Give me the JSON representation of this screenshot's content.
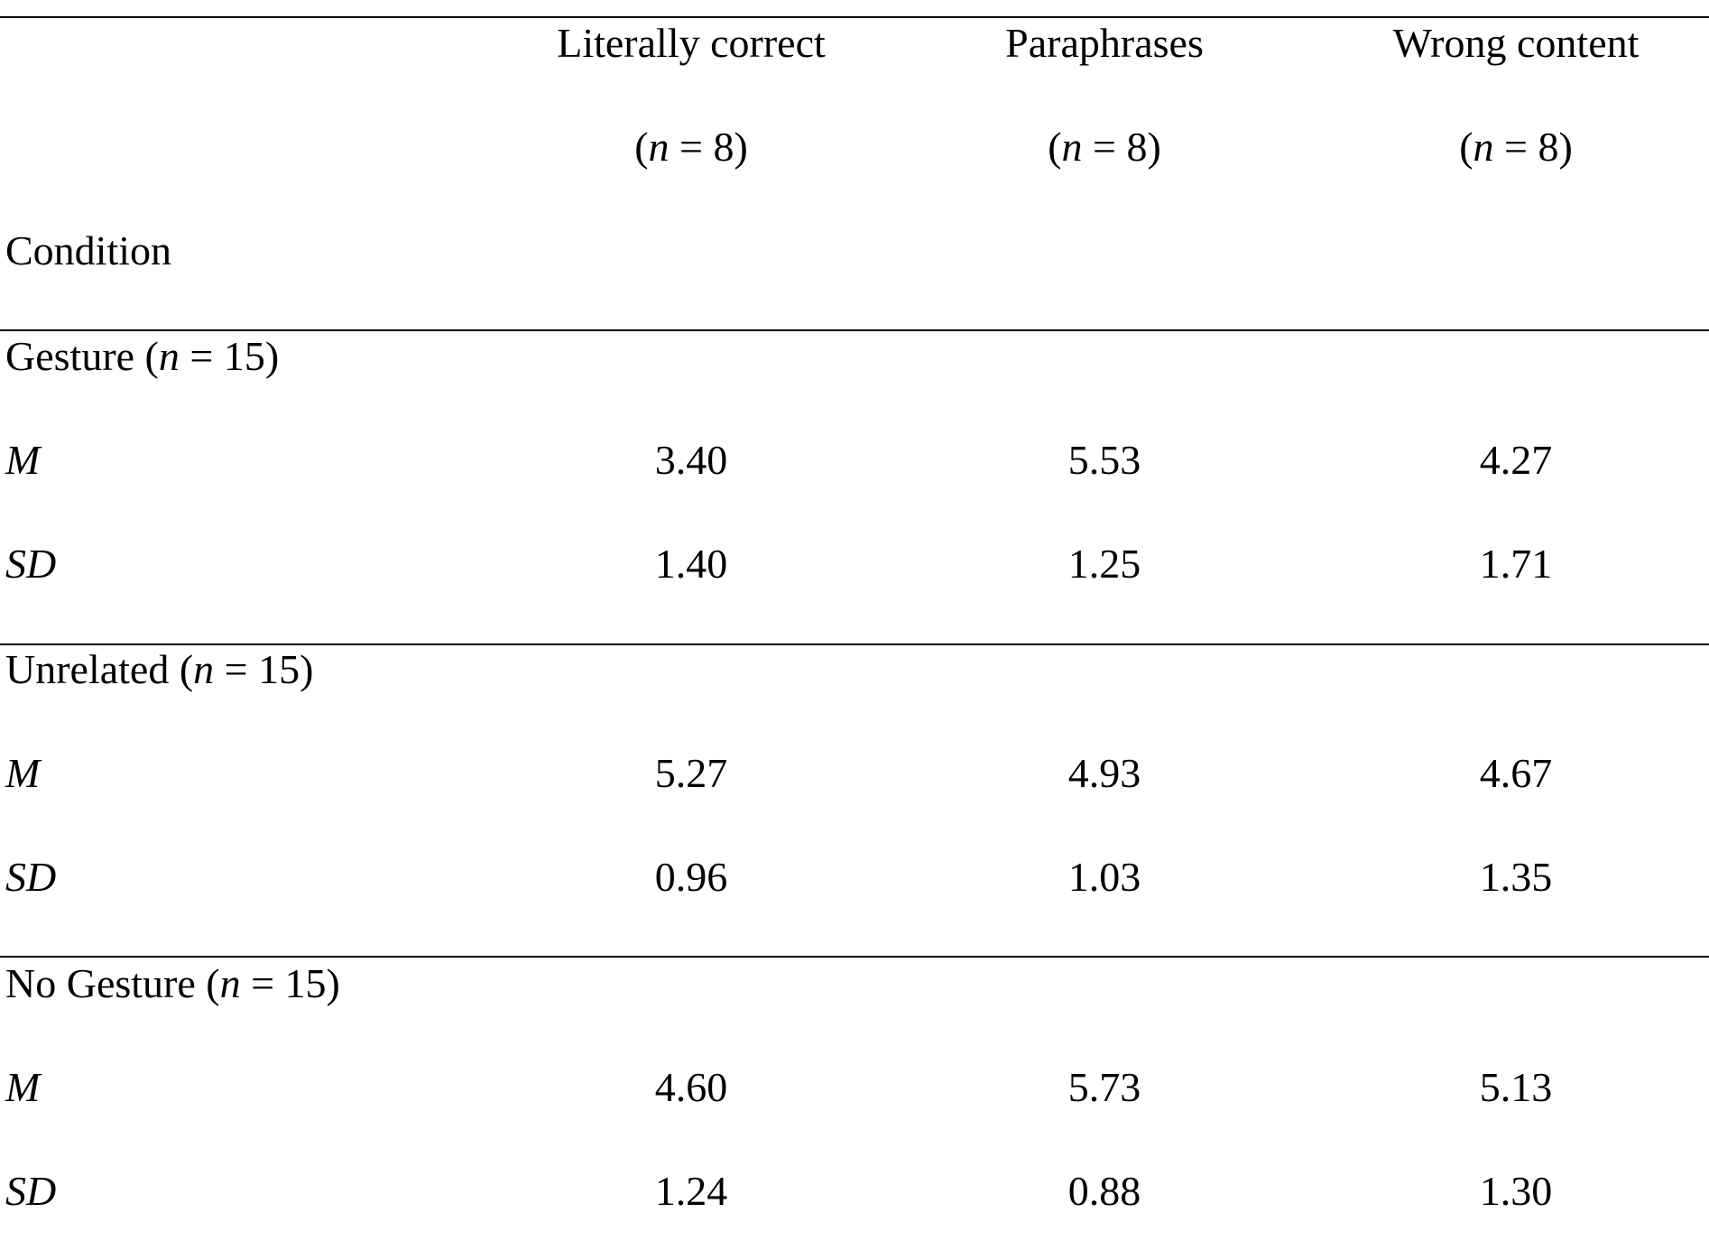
{
  "table": {
    "columns": [
      {
        "label": "Literally correct",
        "n": [
          "(",
          "n",
          " = 8)"
        ]
      },
      {
        "label": "Paraphrases",
        "n": [
          "(",
          "n",
          " = 8)"
        ]
      },
      {
        "label": "Wrong content",
        "n": [
          "(",
          "n",
          " = 8)"
        ]
      }
    ],
    "row_header": "Condition",
    "groups": [
      {
        "label": [
          "Gesture (",
          "n",
          " = 15)"
        ],
        "rows": [
          {
            "stat": "M",
            "values": [
              "3.40",
              "5.53",
              "4.27"
            ]
          },
          {
            "stat": "SD",
            "values": [
              "1.40",
              "1.25",
              "1.71"
            ]
          }
        ]
      },
      {
        "label": [
          "Unrelated (",
          "n",
          " = 15)"
        ],
        "rows": [
          {
            "stat": "M",
            "values": [
              "5.27",
              "4.93",
              "4.67"
            ]
          },
          {
            "stat": "SD",
            "values": [
              "0.96",
              "1.03",
              "1.35"
            ]
          }
        ]
      },
      {
        "label": [
          "No Gesture (",
          "n",
          " = 15)"
        ],
        "rows": [
          {
            "stat": "M",
            "values": [
              "4.60",
              "5.73",
              "5.13"
            ]
          },
          {
            "stat": "SD",
            "values": [
              "1.24",
              "0.88",
              "1.30"
            ]
          }
        ]
      }
    ]
  }
}
